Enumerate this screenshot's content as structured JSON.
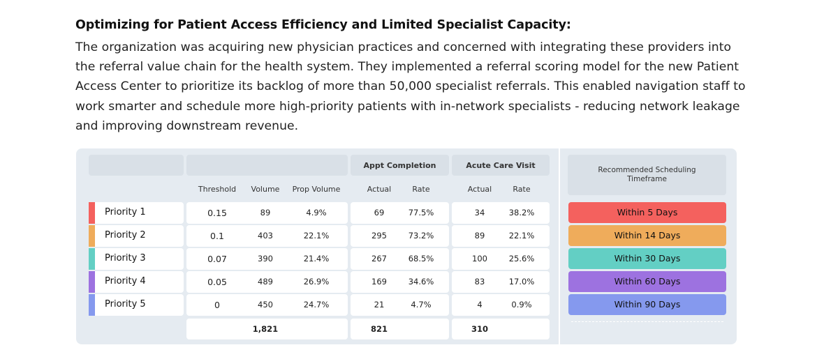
{
  "heading": "Optimizing for Patient Access Efficiency and Limited Specialist Capacity:",
  "paragraph": "The organization was acquiring new physician practices and concerned with integrating these providers into the referral value chain for the health system. They implemented a referral scoring model for the new Patient Access Center to prioritize its backlog of more than 50,000 specialist referrals. This enabled navigation staff to work smarter and schedule more high-priority patients with in-network specialists - reducing network leakage and improving downstream revenue.",
  "table": {
    "group_headers": {
      "appt": "Appt Completion",
      "acute": "Acute Care Visit",
      "timeframe": "Recommended Scheduling Timeframe"
    },
    "col_headers": {
      "threshold": "Threshold",
      "volume": "Volume",
      "prop_volume": "Prop Volume",
      "appt_actual": "Actual",
      "appt_rate": "Rate",
      "acute_actual": "Actual",
      "acute_rate": "Rate"
    },
    "rows": [
      {
        "label": "Priority 1",
        "threshold": "0.15",
        "volume": "89",
        "prop": "4.9%",
        "appt_actual": "69",
        "appt_rate": "77.5%",
        "acute_actual": "34",
        "acute_rate": "38.2%",
        "timeframe": "Within 5 Days",
        "color": "#f4615e"
      },
      {
        "label": "Priority 2",
        "threshold": "0.1",
        "volume": "403",
        "prop": "22.1%",
        "appt_actual": "295",
        "appt_rate": "73.2%",
        "acute_actual": "89",
        "acute_rate": "22.1%",
        "timeframe": "Within 14 Days",
        "color": "#efac5b"
      },
      {
        "label": "Priority 3",
        "threshold": "0.07",
        "volume": "390",
        "prop": "21.4%",
        "appt_actual": "267",
        "appt_rate": "68.5%",
        "acute_actual": "100",
        "acute_rate": "25.6%",
        "timeframe": "Within 30 Days",
        "color": "#63cfc4"
      },
      {
        "label": "Priority 4",
        "threshold": "0.05",
        "volume": "489",
        "prop": "26.9%",
        "appt_actual": "169",
        "appt_rate": "34.6%",
        "acute_actual": "83",
        "acute_rate": "17.0%",
        "timeframe": "Within 60 Days",
        "color": "#9d72e0"
      },
      {
        "label": "Priority 5",
        "threshold": "0",
        "volume": "450",
        "prop": "24.7%",
        "appt_actual": "21",
        "appt_rate": "4.7%",
        "acute_actual": "4",
        "acute_rate": "0.9%",
        "timeframe": "Within 90 Days",
        "color": "#8599ee"
      }
    ],
    "totals": {
      "volume": "1,821",
      "appt_actual": "821",
      "acute_actual": "310"
    }
  }
}
